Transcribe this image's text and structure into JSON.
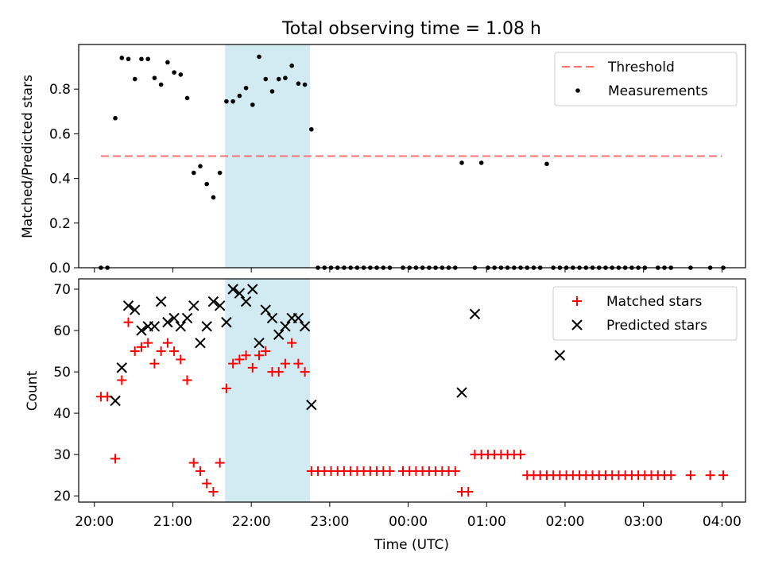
{
  "title": "Total observing time = 1.08 h",
  "chart_data": [
    {
      "type": "scatter",
      "panel": "top",
      "ylabel": "Matched/Predicted stars",
      "xlabel": "",
      "xlim": [
        "19:48",
        "28:18"
      ],
      "ylim": [
        0,
        1.0
      ],
      "yticks": [
        0.0,
        0.2,
        0.4,
        0.6,
        0.8
      ],
      "ytick_labels": [
        "0.0",
        "0.2",
        "0.4",
        "0.6",
        "0.8"
      ],
      "shaded_span": {
        "from": "21:40",
        "to": "22:45",
        "color": "#add8e6"
      },
      "threshold": {
        "name": "Threshold",
        "value": 0.5,
        "from": "20:05",
        "to": "28:00",
        "color": "#ff7070",
        "style": "dashed"
      },
      "series": [
        {
          "name": "Measurements",
          "marker": "dot",
          "color": "#000000",
          "x": [
            "20:05",
            "20:10",
            "20:16",
            "20:21",
            "20:26",
            "20:31",
            "20:36",
            "20:41",
            "20:46",
            "20:51",
            "20:56",
            "21:01",
            "21:06",
            "21:11",
            "21:16",
            "21:21",
            "21:26",
            "21:31",
            "21:36",
            "21:41",
            "21:46",
            "21:51",
            "21:56",
            "22:01",
            "22:06",
            "22:11",
            "22:16",
            "22:21",
            "22:26",
            "22:31",
            "22:36",
            "22:41",
            "22:46",
            "22:51",
            "22:56",
            "23:01",
            "23:06",
            "23:11",
            "23:16",
            "23:21",
            "23:26",
            "23:31",
            "23:36",
            "23:41",
            "23:46",
            "23:56",
            "24:01",
            "24:06",
            "24:11",
            "24:16",
            "24:21",
            "24:26",
            "24:31",
            "24:36",
            "24:41",
            "24:51",
            "24:56",
            "25:01",
            "25:06",
            "25:11",
            "25:16",
            "25:21",
            "25:26",
            "25:31",
            "25:36",
            "25:41",
            "25:46",
            "25:51",
            "25:56",
            "26:01",
            "26:06",
            "26:11",
            "26:16",
            "26:21",
            "26:26",
            "26:31",
            "26:36",
            "26:41",
            "26:46",
            "26:51",
            "26:56",
            "27:01",
            "27:11",
            "27:16",
            "27:21",
            "27:36",
            "27:51",
            "28:01"
          ],
          "y": [
            0.0,
            0.0,
            0.67,
            0.94,
            0.935,
            0.845,
            0.935,
            0.935,
            0.85,
            0.82,
            0.92,
            0.875,
            0.865,
            0.76,
            0.425,
            0.455,
            0.375,
            0.315,
            0.425,
            0.745,
            0.745,
            0.77,
            0.805,
            0.73,
            0.945,
            0.845,
            0.79,
            0.845,
            0.85,
            0.905,
            0.825,
            0.82,
            0.62,
            0.0,
            0.0,
            0.0,
            0.0,
            0.0,
            0.0,
            0.0,
            0.0,
            0.0,
            0.0,
            0.0,
            0.0,
            0.0,
            0.0,
            0.0,
            0.0,
            0.0,
            0.0,
            0.0,
            0.0,
            0.0,
            0.47,
            0.0,
            0.47,
            0.0,
            0.0,
            0.0,
            0.0,
            0.0,
            0.0,
            0.0,
            0.0,
            0.0,
            0.465,
            0.0,
            0.0,
            0.0,
            0.0,
            0.0,
            0.0,
            0.0,
            0.0,
            0.0,
            0.0,
            0.0,
            0.0,
            0.0,
            0.0,
            0.0,
            0.0,
            0.0,
            0.0,
            0.0,
            0.0,
            0.0
          ]
        }
      ],
      "legend": {
        "placement": "upper right",
        "entries": [
          "Threshold",
          "Measurements"
        ]
      }
    },
    {
      "type": "scatter",
      "panel": "bottom",
      "ylabel": "Count",
      "xlabel": "Time (UTC)",
      "xlim": [
        "19:48",
        "28:18"
      ],
      "ylim": [
        18.5,
        72.5
      ],
      "yticks": [
        20,
        30,
        40,
        50,
        60,
        70
      ],
      "ytick_labels": [
        "20",
        "30",
        "40",
        "50",
        "60",
        "70"
      ],
      "xticks": [
        "20:00",
        "21:00",
        "22:00",
        "23:00",
        "24:00",
        "25:00",
        "26:00",
        "27:00",
        "28:00"
      ],
      "xtick_labels": [
        "20:00",
        "21:00",
        "22:00",
        "23:00",
        "00:00",
        "01:00",
        "02:00",
        "03:00",
        "04:00"
      ],
      "shaded_span": {
        "from": "21:40",
        "to": "22:45",
        "color": "#add8e6"
      },
      "series": [
        {
          "name": "Matched stars",
          "marker": "plus",
          "color": "#ff0000",
          "x": [
            "20:05",
            "20:10",
            "20:16",
            "20:21",
            "20:26",
            "20:31",
            "20:36",
            "20:41",
            "20:46",
            "20:51",
            "20:56",
            "21:01",
            "21:06",
            "21:11",
            "21:16",
            "21:21",
            "21:26",
            "21:31",
            "21:36",
            "21:41",
            "21:46",
            "21:51",
            "21:56",
            "22:01",
            "22:06",
            "22:11",
            "22:16",
            "22:21",
            "22:26",
            "22:31",
            "22:36",
            "22:41",
            "22:46",
            "22:51",
            "22:56",
            "23:01",
            "23:06",
            "23:11",
            "23:16",
            "23:21",
            "23:26",
            "23:31",
            "23:36",
            "23:41",
            "23:46",
            "23:56",
            "24:01",
            "24:06",
            "24:11",
            "24:16",
            "24:21",
            "24:26",
            "24:31",
            "24:36",
            "24:41",
            "24:46",
            "24:51",
            "24:56",
            "25:01",
            "25:06",
            "25:11",
            "25:16",
            "25:21",
            "25:26",
            "25:31",
            "25:36",
            "25:41",
            "25:46",
            "25:51",
            "25:56",
            "26:01",
            "26:06",
            "26:11",
            "26:16",
            "26:21",
            "26:26",
            "26:31",
            "26:36",
            "26:41",
            "26:46",
            "26:51",
            "26:56",
            "27:01",
            "27:06",
            "27:11",
            "27:16",
            "27:21",
            "27:36",
            "27:51",
            "28:01"
          ],
          "y": [
            44,
            44,
            29,
            48,
            62,
            55,
            56,
            57,
            52,
            55,
            57,
            55,
            53,
            48,
            28,
            26,
            23,
            21,
            28,
            46,
            52,
            53,
            54,
            51,
            54,
            55,
            50,
            50,
            52,
            57,
            52,
            50,
            26,
            26,
            26,
            26,
            26,
            26,
            26,
            26,
            26,
            26,
            26,
            26,
            26,
            26,
            26,
            26,
            26,
            26,
            26,
            26,
            26,
            26,
            21,
            21,
            30,
            30,
            30,
            30,
            30,
            30,
            30,
            30,
            25,
            25,
            25,
            25,
            25,
            25,
            25,
            25,
            25,
            25,
            25,
            25,
            25,
            25,
            25,
            25,
            25,
            25,
            25,
            25,
            25,
            25,
            25,
            25,
            25,
            25
          ]
        },
        {
          "name": "Predicted stars",
          "marker": "x",
          "color": "#000000",
          "x": [
            "20:16",
            "20:21",
            "20:26",
            "20:31",
            "20:36",
            "20:41",
            "20:46",
            "20:51",
            "20:56",
            "21:01",
            "21:06",
            "21:11",
            "21:16",
            "21:21",
            "21:26",
            "21:31",
            "21:36",
            "21:41",
            "21:46",
            "21:51",
            "21:56",
            "22:01",
            "22:06",
            "22:11",
            "22:16",
            "22:21",
            "22:26",
            "22:31",
            "22:36",
            "22:41",
            "22:46",
            "24:41",
            "24:51",
            "25:56"
          ],
          "y": [
            43,
            51,
            66,
            65,
            60,
            61,
            61,
            67,
            62,
            63,
            61,
            63,
            66,
            57,
            61,
            67,
            66,
            62,
            70,
            69,
            67,
            70,
            57,
            65,
            63,
            59,
            61,
            63,
            63,
            61,
            42,
            45,
            64,
            54
          ]
        }
      ],
      "legend": {
        "placement": "upper right",
        "entries": [
          "Matched stars",
          "Predicted stars"
        ]
      }
    }
  ]
}
